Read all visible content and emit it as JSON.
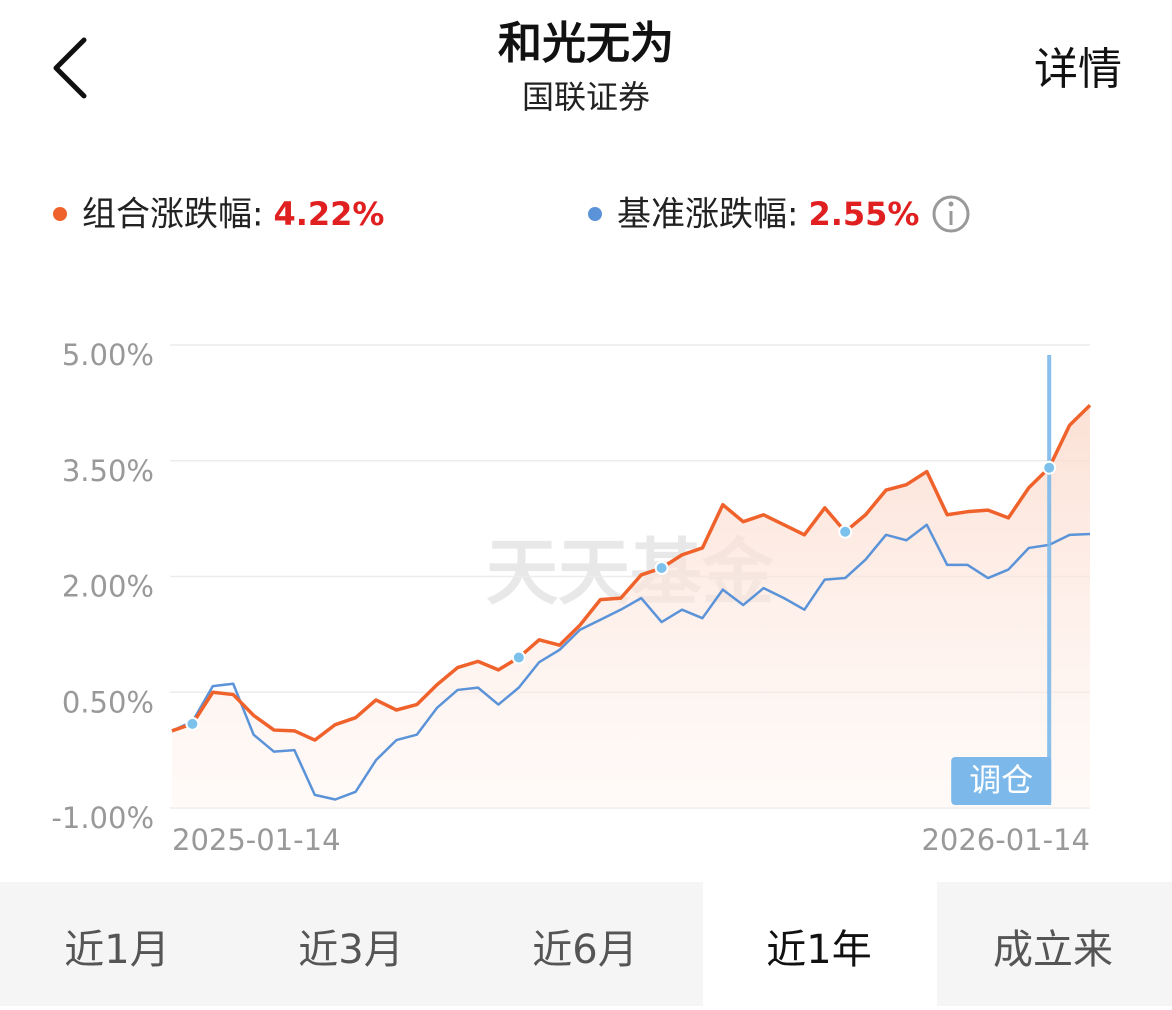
{
  "header": {
    "title": "和光无为",
    "subtitle": "国联证券",
    "action": "详情"
  },
  "chart_data": {
    "type": "line",
    "series": [
      {
        "name": "组合涨跌幅:",
        "color": "#f0622b",
        "summary": {
          "value": 4.22,
          "label": "4.22%"
        },
        "values": [
          0.0,
          0.09,
          0.5,
          0.47,
          0.2,
          0.01,
          0.0,
          -0.12,
          0.08,
          0.17,
          0.4,
          0.27,
          0.34,
          0.6,
          0.82,
          0.9,
          0.79,
          0.95,
          1.18,
          1.11,
          1.37,
          1.7,
          1.72,
          2.02,
          2.11,
          2.28,
          2.37,
          2.93,
          2.71,
          2.8,
          2.67,
          2.54,
          2.89,
          2.58,
          2.8,
          3.12,
          3.19,
          3.36,
          2.8,
          2.84,
          2.86,
          2.76,
          3.15,
          3.41,
          3.96,
          4.22
        ]
      },
      {
        "name": "基准涨跌幅:",
        "color": "#5b93d8",
        "summary": {
          "value": 2.55,
          "label": "2.55%"
        },
        "values": [
          0.0,
          0.12,
          0.58,
          0.61,
          -0.05,
          -0.27,
          -0.25,
          -0.83,
          -0.89,
          -0.79,
          -0.38,
          -0.12,
          -0.05,
          0.3,
          0.53,
          0.56,
          0.34,
          0.56,
          0.89,
          1.05,
          1.31,
          1.44,
          1.57,
          1.72,
          1.41,
          1.57,
          1.46,
          1.83,
          1.63,
          1.85,
          1.72,
          1.57,
          1.96,
          1.98,
          2.22,
          2.54,
          2.47,
          2.67,
          2.15,
          2.15,
          1.98,
          2.09,
          2.37,
          2.41,
          2.54,
          2.55
        ]
      }
    ],
    "categories": [
      "2025-01-14",
      null,
      null,
      null,
      null,
      null,
      null,
      null,
      null,
      null,
      null,
      null,
      null,
      null,
      null,
      null,
      null,
      null,
      null,
      null,
      null,
      null,
      null,
      null,
      null,
      null,
      null,
      null,
      null,
      null,
      null,
      null,
      null,
      null,
      null,
      null,
      null,
      null,
      null,
      null,
      null,
      null,
      null,
      null,
      null,
      "2026-01-14"
    ],
    "ylim": [
      -1,
      5
    ],
    "yticks": [
      {
        "value": 5,
        "label": "5.00%"
      },
      {
        "value": 3.5,
        "label": "3.50%"
      },
      {
        "value": 2,
        "label": "2.00%"
      },
      {
        "value": 0.5,
        "label": "0.50%"
      },
      {
        "value": -1,
        "label": "-1.00%"
      }
    ],
    "grid": true,
    "watermark": "天天基金",
    "annotation": "调仓"
  },
  "tabs": [
    "近1月",
    "近3月",
    "近6月",
    "近1年",
    "成立来"
  ],
  "selected_tab": 3
}
